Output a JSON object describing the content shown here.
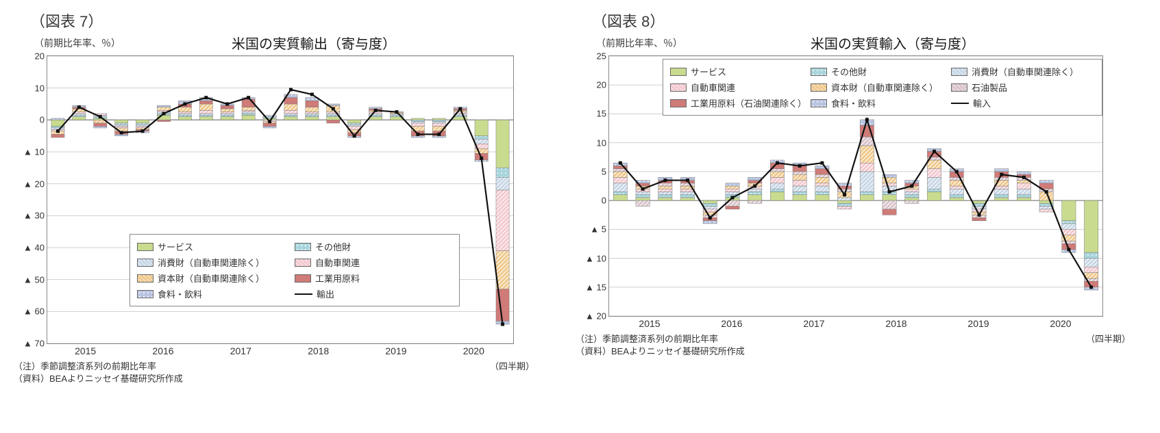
{
  "colors": {
    "services": "#c9db8e",
    "other": "#a9d5dc",
    "consumer": "#c8d7e6",
    "auto": "#f3c9cf",
    "capital": "#f0c98b",
    "industrial": "#cf7b78",
    "food": "#b9c5e0",
    "petro": "#d9c4cb",
    "line": "#111111",
    "grid": "#cfcfcf",
    "border": "#888888",
    "bg": "#ffffff"
  },
  "hatch": {
    "services": "none",
    "other": "dots",
    "consumer": "diag",
    "auto": "diag",
    "capital": "diag",
    "industrial": "none",
    "food": "dots",
    "petro": "diag"
  },
  "labels": {
    "services": "サービス",
    "other": "その他財",
    "consumer": "消費財（自動車関連除く）",
    "auto": "自動車関連",
    "capital": "資本財（自動車関連除く）",
    "industrial": "工業用原料",
    "industrial_oil": "工業用原料（石油関連除く）",
    "food": "食料・飲料",
    "petro": "石油製品",
    "export_total": "輸出",
    "import_total": "輸入"
  },
  "notes": {
    "adj": "（注）季節調整済系列の前期比年率",
    "src": "（資料）BEAよりニッセイ基礎研究所作成",
    "xunit": "（四半期）",
    "yunit": "（前期比年率、％）"
  },
  "years": [
    "2015",
    "2016",
    "2017",
    "2018",
    "2019",
    "2020"
  ],
  "charts": {
    "exports": {
      "fig": "（図表 7）",
      "title": "米国の実質輸出（寄与度）",
      "ymin": -70,
      "ymax": 20,
      "ystep": 10,
      "order": [
        "services",
        "other",
        "consumer",
        "auto",
        "capital",
        "industrial",
        "food"
      ],
      "legend_order": [
        "services",
        "other",
        "consumer",
        "auto",
        "capital",
        "industrial",
        "food",
        "total"
      ],
      "periods": 22,
      "series": {
        "services": [
          -2.0,
          1.0,
          0.5,
          -1.0,
          -1.0,
          1.5,
          1.0,
          1.0,
          1.0,
          1.5,
          0.5,
          1.0,
          1.0,
          1.0,
          -1.0,
          1.0,
          1.0,
          0.5,
          0.5,
          1.0,
          -5.0,
          -15.0
        ],
        "other": [
          -0.5,
          0.5,
          0.5,
          -0.5,
          -0.5,
          0.5,
          0.5,
          0.5,
          0.5,
          0.5,
          0.5,
          0.5,
          0.5,
          0.5,
          -0.5,
          0.5,
          0.5,
          -0.5,
          -0.5,
          0.5,
          -1.0,
          -3.0
        ],
        "consumer": [
          -0.5,
          0.5,
          0.5,
          -0.5,
          -0.5,
          0.5,
          0.5,
          0.5,
          0.5,
          0.5,
          0.5,
          0.5,
          0.5,
          0.5,
          -0.5,
          0.5,
          0.5,
          -0.5,
          -0.5,
          0.5,
          -1.5,
          -4.0
        ],
        "auto": [
          -0.5,
          0.5,
          0.5,
          -0.5,
          -0.5,
          0.5,
          0.5,
          1.0,
          0.5,
          0.5,
          -0.5,
          1.0,
          0.5,
          0.5,
          -1.0,
          0.5,
          0.0,
          -1.0,
          -1.0,
          0.5,
          -1.5,
          -19.0
        ],
        "capital": [
          -1.0,
          1.0,
          -1.0,
          -1.0,
          -0.5,
          1.0,
          1.5,
          2.0,
          1.0,
          1.0,
          -0.5,
          2.0,
          1.5,
          2.0,
          -1.0,
          0.5,
          0.5,
          -1.5,
          -1.5,
          0.5,
          -1.5,
          -12.0
        ],
        "industrial": [
          -1.0,
          0.5,
          -1.0,
          -1.0,
          -0.5,
          -0.5,
          1.0,
          1.0,
          1.0,
          2.5,
          -1.0,
          2.0,
          2.0,
          -1.0,
          -1.0,
          0.5,
          0.0,
          -1.5,
          -1.5,
          0.5,
          -2.0,
          -10.0
        ],
        "food": [
          0.5,
          0.5,
          -0.5,
          -0.5,
          -0.5,
          0.5,
          1.0,
          1.0,
          0.5,
          0.5,
          -0.5,
          1.0,
          1.0,
          0.5,
          -0.5,
          0.5,
          0.0,
          -0.5,
          -0.5,
          0.5,
          -0.5,
          -1.0
        ]
      },
      "total": [
        -3.5,
        4.0,
        1.0,
        -4.0,
        -3.5,
        2.0,
        5.0,
        7.0,
        5.0,
        7.0,
        -0.5,
        9.5,
        8.0,
        3.5,
        -5.0,
        3.0,
        2.5,
        -4.5,
        -4.5,
        3.5,
        -12.0,
        -64.0
      ]
    },
    "imports": {
      "fig": "（図表 8）",
      "title": "米国の実質輸入（寄与度）",
      "ymin": -20,
      "ymax": 25,
      "ystep": 5,
      "order": [
        "services",
        "other",
        "consumer",
        "auto",
        "capital",
        "petro",
        "industrial",
        "food"
      ],
      "legend_order": [
        "services",
        "other",
        "consumer",
        "auto",
        "capital",
        "petro",
        "industrial",
        "food",
        "total"
      ],
      "periods": 22,
      "series": {
        "services": [
          1.0,
          0.5,
          0.5,
          0.5,
          -0.5,
          0.5,
          1.0,
          1.5,
          1.0,
          1.0,
          -0.5,
          1.0,
          1.0,
          0.5,
          1.5,
          0.5,
          -0.5,
          0.5,
          0.5,
          -0.5,
          -3.5,
          -9.0
        ],
        "other": [
          0.5,
          0.5,
          0.5,
          0.5,
          -0.5,
          0.5,
          0.5,
          0.5,
          0.5,
          0.5,
          -0.5,
          0.5,
          0.5,
          0.5,
          0.5,
          0.5,
          -0.5,
          0.5,
          0.5,
          -0.5,
          -0.5,
          -1.0
        ],
        "consumer": [
          1.5,
          0.5,
          0.5,
          0.5,
          -0.5,
          0.5,
          0.5,
          1.0,
          1.0,
          1.0,
          0.5,
          3.5,
          1.0,
          0.5,
          2.0,
          1.0,
          -0.5,
          1.0,
          1.0,
          -0.5,
          -1.0,
          -1.5
        ],
        "auto": [
          1.0,
          0.5,
          0.5,
          0.5,
          -0.5,
          0.5,
          0.5,
          1.0,
          1.0,
          0.5,
          -0.5,
          1.5,
          0.5,
          0.5,
          1.5,
          0.5,
          -0.5,
          0.5,
          1.0,
          -0.5,
          -1.0,
          -1.0
        ],
        "capital": [
          1.0,
          0.5,
          0.5,
          0.5,
          -0.5,
          0.5,
          0.5,
          1.0,
          1.0,
          1.0,
          1.0,
          3.0,
          1.0,
          0.5,
          1.5,
          1.0,
          -0.5,
          1.0,
          0.5,
          1.5,
          -1.0,
          -1.0
        ],
        "petro": [
          0.5,
          -1.0,
          0.5,
          0.5,
          -0.5,
          -1.0,
          -0.5,
          0.5,
          0.5,
          0.5,
          0.5,
          1.5,
          -1.5,
          -0.5,
          0.5,
          0.5,
          -0.5,
          0.5,
          0.5,
          0.5,
          -0.5,
          -0.5
        ],
        "industrial": [
          0.5,
          0.5,
          0.5,
          0.5,
          -0.5,
          -0.5,
          0.5,
          1.0,
          1.0,
          1.0,
          0.5,
          2.0,
          -1.0,
          0.5,
          1.0,
          1.0,
          -0.5,
          1.0,
          0.5,
          1.0,
          -1.0,
          -1.0
        ],
        "food": [
          0.5,
          0.5,
          0.5,
          0.5,
          -0.5,
          0.5,
          0.5,
          0.5,
          0.5,
          0.5,
          0.5,
          1.0,
          0.5,
          0.5,
          0.5,
          0.5,
          0.0,
          0.5,
          0.5,
          0.5,
          -0.5,
          -0.5
        ]
      },
      "total": [
        6.5,
        2.0,
        3.5,
        3.5,
        -3.0,
        0.5,
        2.5,
        6.5,
        6.0,
        6.5,
        1.0,
        14.0,
        1.5,
        2.5,
        8.5,
        5.0,
        -2.5,
        4.5,
        4.0,
        1.5,
        -8.5,
        -15.0
      ]
    }
  }
}
